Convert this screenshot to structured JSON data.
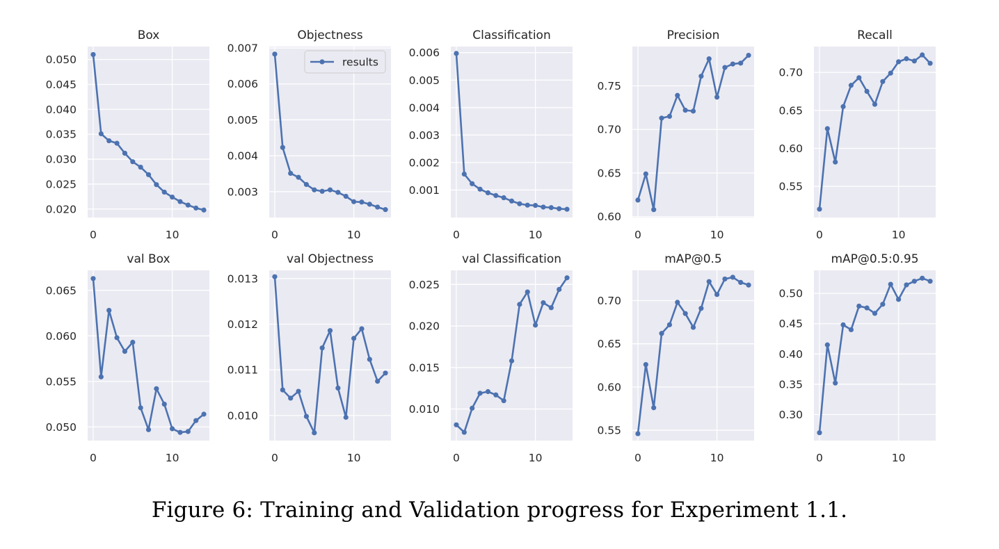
{
  "figure": {
    "caption": "Figure 6: Training and Validation progress for Experiment 1.1."
  },
  "colors": {
    "line": "#4c72b0",
    "background": "#eaeaf2",
    "grid": "#ffffff",
    "text": "#262626"
  },
  "chart_data": [
    {
      "type": "line",
      "title": "Box",
      "x": [
        0,
        1,
        2,
        3,
        4,
        5,
        6,
        7,
        8,
        9,
        10,
        11,
        12,
        13,
        14
      ],
      "series": [
        {
          "name": "results",
          "values": [
            0.051,
            0.0351,
            0.0337,
            0.0332,
            0.0312,
            0.0295,
            0.0284,
            0.0269,
            0.0249,
            0.0234,
            0.0224,
            0.0215,
            0.0208,
            0.0202,
            0.0198
          ]
        }
      ],
      "xlim": [
        -0.7,
        14.7
      ],
      "ylim": [
        0.0183,
        0.0526
      ],
      "xticks": [
        0,
        10
      ],
      "xtick_labels": [
        "0",
        "10"
      ],
      "yticks": [
        0.02,
        0.025,
        0.03,
        0.035,
        0.04,
        0.045,
        0.05
      ],
      "ytick_labels": [
        "0.020",
        "0.025",
        "0.030",
        "0.035",
        "0.040",
        "0.045",
        "0.050"
      ],
      "grid": true,
      "legend": null
    },
    {
      "type": "line",
      "title": "Objectness",
      "x": [
        0,
        1,
        2,
        3,
        4,
        5,
        6,
        7,
        8,
        9,
        10,
        11,
        12,
        13,
        14
      ],
      "series": [
        {
          "name": "results",
          "values": [
            0.00683,
            0.00423,
            0.00351,
            0.0034,
            0.0032,
            0.00305,
            0.00301,
            0.00305,
            0.00298,
            0.00287,
            0.00272,
            0.00271,
            0.00265,
            0.00257,
            0.0025
          ]
        }
      ],
      "xlim": [
        -0.7,
        14.7
      ],
      "ylim": [
        0.00228,
        0.00704
      ],
      "xticks": [
        0,
        10
      ],
      "xtick_labels": [
        "0",
        "10"
      ],
      "yticks": [
        0.003,
        0.004,
        0.005,
        0.006,
        0.007
      ],
      "ytick_labels": [
        "0.003",
        "0.004",
        "0.005",
        "0.006",
        "0.007"
      ],
      "grid": true,
      "legend": "upper-right",
      "legend_label": "results"
    },
    {
      "type": "line",
      "title": "Classification",
      "x": [
        0,
        1,
        2,
        3,
        4,
        5,
        6,
        7,
        8,
        9,
        10,
        11,
        12,
        13,
        14
      ],
      "series": [
        {
          "name": "results",
          "values": [
            0.00597,
            0.00158,
            0.00123,
            0.00103,
            0.0009,
            0.0008,
            0.00072,
            0.0006,
            0.0005,
            0.00045,
            0.00044,
            0.00038,
            0.00036,
            0.00032,
            0.0003
          ]
        }
      ],
      "xlim": [
        -0.7,
        14.7
      ],
      "ylim": [
        0.0,
        0.00622
      ],
      "xticks": [
        0,
        10
      ],
      "xtick_labels": [
        "0",
        "10"
      ],
      "yticks": [
        0.001,
        0.002,
        0.003,
        0.004,
        0.005,
        0.006
      ],
      "ytick_labels": [
        "0.001",
        "0.002",
        "0.003",
        "0.004",
        "0.005",
        "0.006"
      ],
      "grid": true,
      "legend": null
    },
    {
      "type": "line",
      "title": "Precision",
      "x": [
        0,
        1,
        2,
        3,
        4,
        5,
        6,
        7,
        8,
        9,
        10,
        11,
        12,
        13,
        14
      ],
      "series": [
        {
          "name": "results",
          "values": [
            0.619,
            0.649,
            0.608,
            0.713,
            0.715,
            0.739,
            0.722,
            0.721,
            0.761,
            0.781,
            0.737,
            0.771,
            0.775,
            0.776,
            0.785
          ]
        }
      ],
      "xlim": [
        -0.7,
        14.7
      ],
      "ylim": [
        0.599,
        0.795
      ],
      "xticks": [
        0,
        10
      ],
      "xtick_labels": [
        "0",
        "10"
      ],
      "yticks": [
        0.6,
        0.65,
        0.7,
        0.75
      ],
      "ytick_labels": [
        "0.60",
        "0.65",
        "0.70",
        "0.75"
      ],
      "grid": true,
      "legend": null
    },
    {
      "type": "line",
      "title": "Recall",
      "x": [
        0,
        1,
        2,
        3,
        4,
        5,
        6,
        7,
        8,
        9,
        10,
        11,
        12,
        13,
        14
      ],
      "series": [
        {
          "name": "results",
          "values": [
            0.52,
            0.626,
            0.582,
            0.655,
            0.683,
            0.693,
            0.675,
            0.658,
            0.688,
            0.699,
            0.714,
            0.718,
            0.715,
            0.723,
            0.712
          ]
        }
      ],
      "xlim": [
        -0.7,
        14.7
      ],
      "ylim": [
        0.509,
        0.734
      ],
      "xticks": [
        0,
        10
      ],
      "xtick_labels": [
        "0",
        "10"
      ],
      "yticks": [
        0.55,
        0.6,
        0.65,
        0.7
      ],
      "ytick_labels": [
        "0.55",
        "0.60",
        "0.65",
        "0.70"
      ],
      "grid": true,
      "legend": null
    },
    {
      "type": "line",
      "title": "val Box",
      "x": [
        0,
        1,
        2,
        3,
        4,
        5,
        6,
        7,
        8,
        9,
        10,
        11,
        12,
        13,
        14
      ],
      "series": [
        {
          "name": "results",
          "values": [
            0.0663,
            0.0555,
            0.0628,
            0.0598,
            0.0583,
            0.0593,
            0.0521,
            0.0497,
            0.0542,
            0.0525,
            0.0498,
            0.0494,
            0.0495,
            0.0507,
            0.0514
          ]
        }
      ],
      "xlim": [
        -0.7,
        14.7
      ],
      "ylim": [
        0.0485,
        0.0672
      ],
      "xticks": [
        0,
        10
      ],
      "xtick_labels": [
        "0",
        "10"
      ],
      "yticks": [
        0.05,
        0.055,
        0.06,
        0.065
      ],
      "ytick_labels": [
        "0.050",
        "0.055",
        "0.060",
        "0.065"
      ],
      "grid": true,
      "legend": null
    },
    {
      "type": "line",
      "title": "val Objectness",
      "x": [
        0,
        1,
        2,
        3,
        4,
        5,
        6,
        7,
        8,
        9,
        10,
        11,
        12,
        13,
        14
      ],
      "series": [
        {
          "name": "results",
          "values": [
            0.01304,
            0.01056,
            0.01038,
            0.01053,
            0.00998,
            0.00962,
            0.01148,
            0.01186,
            0.0106,
            0.00996,
            0.01169,
            0.0119,
            0.01123,
            0.01075,
            0.01093
          ]
        }
      ],
      "xlim": [
        -0.7,
        14.7
      ],
      "ylim": [
        0.00945,
        0.01318
      ],
      "xticks": [
        0,
        10
      ],
      "xtick_labels": [
        "0",
        "10"
      ],
      "yticks": [
        0.01,
        0.011,
        0.012,
        0.013
      ],
      "ytick_labels": [
        "0.010",
        "0.011",
        "0.012",
        "0.013"
      ],
      "grid": true,
      "legend": null
    },
    {
      "type": "line",
      "title": "val Classification",
      "x": [
        0,
        1,
        2,
        3,
        4,
        5,
        6,
        7,
        8,
        9,
        10,
        11,
        12,
        13,
        14
      ],
      "series": [
        {
          "name": "results",
          "values": [
            0.0081,
            0.0072,
            0.0101,
            0.0119,
            0.0121,
            0.0117,
            0.011,
            0.0158,
            0.0226,
            0.0241,
            0.0201,
            0.0228,
            0.0222,
            0.0244,
            0.0258
          ]
        }
      ],
      "xlim": [
        -0.7,
        14.7
      ],
      "ylim": [
        0.0062,
        0.0267
      ],
      "xticks": [
        0,
        10
      ],
      "xtick_labels": [
        "0",
        "10"
      ],
      "yticks": [
        0.01,
        0.015,
        0.02,
        0.025
      ],
      "ytick_labels": [
        "0.010",
        "0.015",
        "0.020",
        "0.025"
      ],
      "grid": true,
      "legend": null
    },
    {
      "type": "line",
      "title": "mAP@0.5",
      "x": [
        0,
        1,
        2,
        3,
        4,
        5,
        6,
        7,
        8,
        9,
        10,
        11,
        12,
        13,
        14
      ],
      "series": [
        {
          "name": "results",
          "values": [
            0.546,
            0.626,
            0.576,
            0.662,
            0.672,
            0.698,
            0.685,
            0.669,
            0.691,
            0.722,
            0.707,
            0.725,
            0.727,
            0.721,
            0.718
          ]
        }
      ],
      "xlim": [
        -0.7,
        14.7
      ],
      "ylim": [
        0.538,
        0.735
      ],
      "xticks": [
        0,
        10
      ],
      "xtick_labels": [
        "0",
        "10"
      ],
      "yticks": [
        0.55,
        0.6,
        0.65,
        0.7
      ],
      "ytick_labels": [
        "0.55",
        "0.60",
        "0.65",
        "0.70"
      ],
      "grid": true,
      "legend": null
    },
    {
      "type": "line",
      "title": "mAP@0.5:0.95",
      "x": [
        0,
        1,
        2,
        3,
        4,
        5,
        6,
        7,
        8,
        9,
        10,
        11,
        12,
        13,
        14
      ],
      "series": [
        {
          "name": "results",
          "values": [
            0.27,
            0.415,
            0.352,
            0.448,
            0.44,
            0.479,
            0.476,
            0.467,
            0.482,
            0.515,
            0.49,
            0.514,
            0.52,
            0.525,
            0.52
          ]
        }
      ],
      "xlim": [
        -0.7,
        14.7
      ],
      "ylim": [
        0.257,
        0.538
      ],
      "xticks": [
        0,
        10
      ],
      "xtick_labels": [
        "0",
        "10"
      ],
      "yticks": [
        0.3,
        0.35,
        0.4,
        0.45,
        0.5
      ],
      "ytick_labels": [
        "0.30",
        "0.35",
        "0.40",
        "0.45",
        "0.50"
      ],
      "grid": true,
      "legend": null
    }
  ]
}
